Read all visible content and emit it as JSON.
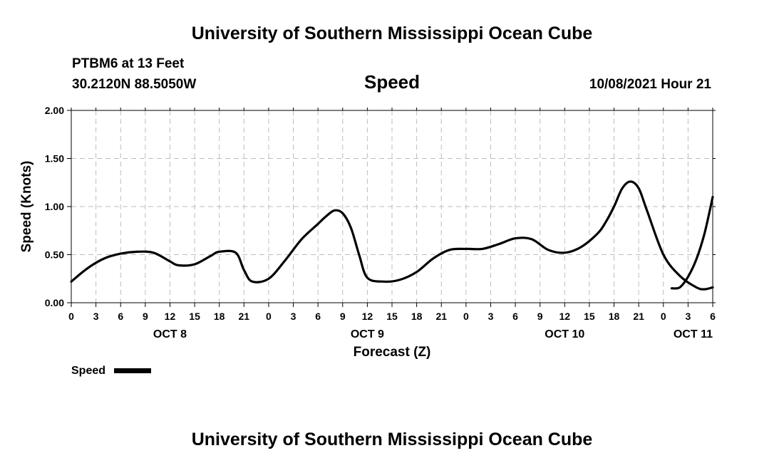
{
  "header": {
    "top_title": "University of Southern Mississippi Ocean Cube",
    "station": "PTBM6 at 13 Feet",
    "coords": "30.2120N  88.5050W",
    "variable": "Speed",
    "issued": "10/08/2021 Hour 21"
  },
  "footer": {
    "bottom_title": "University of Southern Mississippi Ocean Cube"
  },
  "legend": {
    "label": "Speed"
  },
  "chart_data": {
    "type": "line",
    "title": "Speed",
    "xlabel": "Forecast (Z)",
    "ylabel": "Speed (Knots)",
    "ylim": [
      0,
      2
    ],
    "y_ticks": [
      "0.00",
      "0.50",
      "1.00",
      "1.50",
      "2.00"
    ],
    "x_ticks": [
      "0",
      "3",
      "6",
      "9",
      "12",
      "15",
      "18",
      "21",
      "0",
      "3",
      "6",
      "9",
      "12",
      "15",
      "18",
      "21",
      "0",
      "3",
      "6",
      "9",
      "12",
      "15",
      "18",
      "21",
      "0",
      "3",
      "6"
    ],
    "day_labels": [
      {
        "label": "OCT 8",
        "hour": 12
      },
      {
        "label": "OCT 9",
        "hour": 36
      },
      {
        "label": "OCT 10",
        "hour": 60
      },
      {
        "label": "OCT 11",
        "hour": 78
      }
    ],
    "x_range_hours": [
      0,
      78
    ],
    "grid": true,
    "legend": "bottom-left",
    "series": [
      {
        "name": "Speed",
        "color": "#000000",
        "x": [
          0,
          2,
          4,
          6,
          8,
          10,
          12,
          13,
          15,
          17,
          18,
          20,
          21,
          22,
          24,
          26,
          28,
          30,
          31,
          32,
          33,
          34,
          35,
          36,
          38,
          40,
          42,
          44,
          46,
          48,
          50,
          52,
          54,
          56,
          58,
          60,
          62,
          64,
          65,
          66,
          67,
          68,
          69,
          70,
          72,
          74,
          76,
          77,
          78
        ],
        "y": [
          0.22,
          0.36,
          0.46,
          0.51,
          0.53,
          0.52,
          0.43,
          0.39,
          0.4,
          0.49,
          0.53,
          0.52,
          0.34,
          0.22,
          0.25,
          0.44,
          0.66,
          0.82,
          0.9,
          0.96,
          0.93,
          0.78,
          0.5,
          0.26,
          0.22,
          0.24,
          0.32,
          0.46,
          0.55,
          0.56,
          0.56,
          0.61,
          0.67,
          0.66,
          0.55,
          0.52,
          0.58,
          0.72,
          0.84,
          1.0,
          1.19,
          1.26,
          1.19,
          0.96,
          0.5,
          0.28,
          0.16,
          0.14,
          0.16
        ]
      },
      {
        "name": "Speed (tail)",
        "color": "#000000",
        "x": [
          73,
          74,
          75,
          76,
          77,
          78
        ],
        "y": [
          0.15,
          0.16,
          0.27,
          0.45,
          0.72,
          1.1
        ]
      }
    ]
  }
}
